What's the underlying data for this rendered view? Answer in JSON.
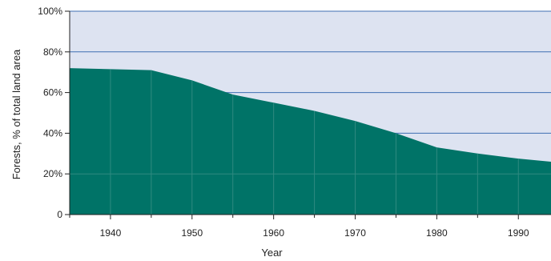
{
  "chart_data": {
    "type": "area",
    "title": "",
    "xlabel": "Year",
    "ylabel": "Forests, % of total land area",
    "xlim": [
      1935,
      1994
    ],
    "ylim": [
      0,
      100
    ],
    "x_ticks": [
      1940,
      1950,
      1960,
      1970,
      1980,
      1990
    ],
    "x_tick_labels": [
      "1940",
      "1950",
      "1960",
      "1970",
      "1980",
      "1990"
    ],
    "y_ticks": [
      0,
      20,
      40,
      60,
      80,
      100
    ],
    "y_tick_labels": [
      "0",
      "20%",
      "40%",
      "60%",
      "80%",
      "100%"
    ],
    "grid": true,
    "series": [
      {
        "x": [
          1935,
          1940,
          1945,
          1950,
          1955,
          1960,
          1965,
          1970,
          1975,
          1980,
          1985,
          1990,
          1994
        ],
        "values": [
          72,
          71.5,
          71,
          66,
          59,
          55,
          51,
          46,
          40,
          33,
          30,
          27.5,
          26
        ]
      }
    ],
    "colors": {
      "area": "#007367",
      "plot_background": "#dde3f1",
      "grid": "#3f6fb3",
      "axis": "#222222"
    }
  }
}
